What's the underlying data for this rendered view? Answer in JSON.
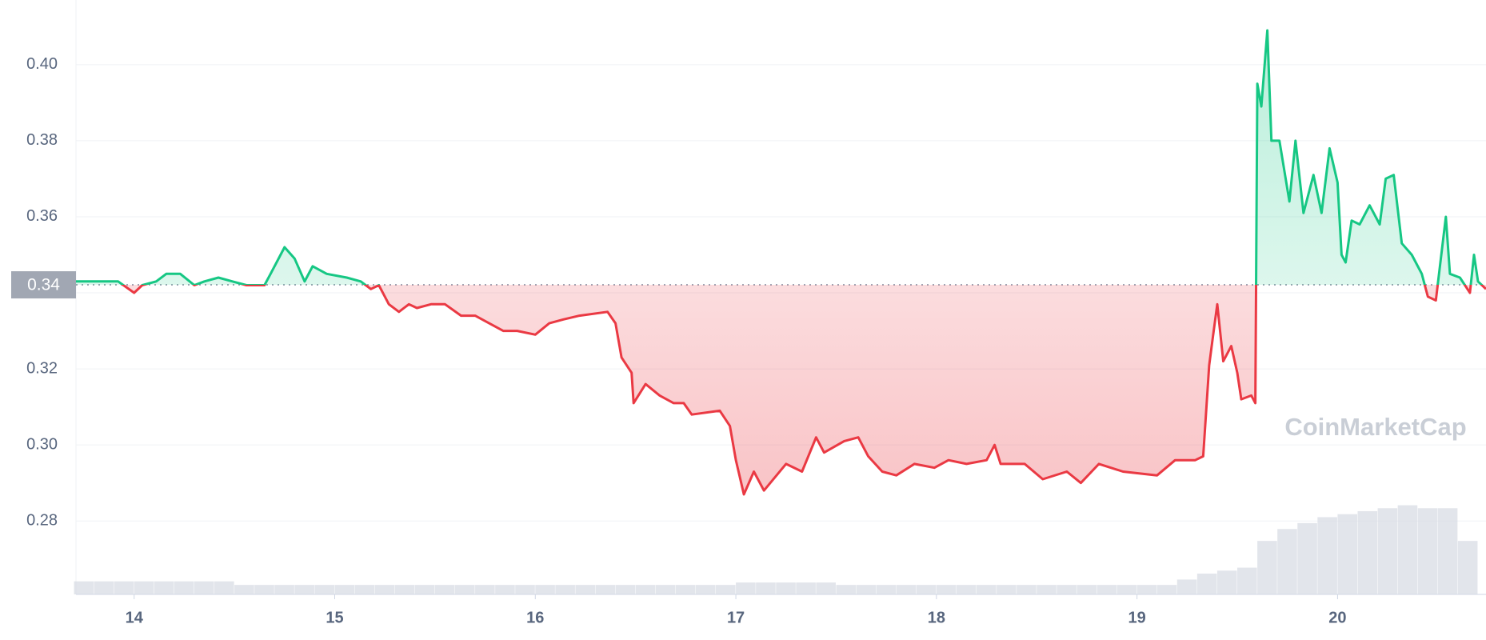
{
  "chart_data": {
    "type": "line",
    "watermark": "CoinMarketCap",
    "x": [
      13.71,
      13.85,
      13.92,
      14.0,
      14.04,
      14.11,
      14.16,
      14.23,
      14.3,
      14.35,
      14.42,
      14.49,
      14.56,
      14.65,
      14.68,
      14.75,
      14.8,
      14.85,
      14.89,
      14.96,
      15.06,
      15.13,
      15.18,
      15.22,
      15.27,
      15.32,
      15.37,
      15.41,
      15.48,
      15.55,
      15.63,
      15.7,
      15.77,
      15.84,
      15.91,
      16.0,
      16.07,
      16.14,
      16.22,
      16.36,
      16.4,
      16.43,
      16.48,
      16.49,
      16.55,
      16.62,
      16.69,
      16.74,
      16.78,
      16.92,
      16.97,
      17.0,
      17.04,
      17.09,
      17.14,
      17.25,
      17.33,
      17.4,
      17.44,
      17.54,
      17.61,
      17.66,
      17.73,
      17.8,
      17.89,
      17.99,
      18.06,
      18.15,
      18.25,
      18.29,
      18.32,
      18.44,
      18.53,
      18.65,
      18.72,
      18.81,
      18.93,
      19.1,
      19.19,
      19.29,
      19.33,
      19.36,
      19.38,
      19.4,
      19.43,
      19.47,
      19.5,
      19.52,
      19.57,
      19.59,
      19.6,
      19.62,
      19.65,
      19.67,
      19.71,
      19.76,
      19.79,
      19.83,
      19.88,
      19.92,
      19.96,
      20.0,
      20.02,
      20.04,
      20.07,
      20.11,
      20.16,
      20.21,
      20.24,
      20.28,
      20.32,
      20.37,
      20.42,
      20.45,
      20.49,
      20.54,
      20.56,
      20.61,
      20.66,
      20.68,
      20.7,
      20.74
    ],
    "series": [
      {
        "values": [
          0.343,
          0.343,
          0.343,
          0.34,
          0.342,
          0.343,
          0.345,
          0.345,
          0.342,
          0.343,
          0.344,
          0.343,
          0.342,
          0.342,
          0.345,
          0.352,
          0.349,
          0.343,
          0.347,
          0.345,
          0.344,
          0.343,
          0.341,
          0.342,
          0.337,
          0.335,
          0.337,
          0.336,
          0.337,
          0.337,
          0.334,
          0.334,
          0.332,
          0.33,
          0.33,
          0.329,
          0.332,
          0.333,
          0.334,
          0.335,
          0.332,
          0.323,
          0.319,
          0.311,
          0.316,
          0.313,
          0.311,
          0.311,
          0.308,
          0.309,
          0.305,
          0.296,
          0.287,
          0.293,
          0.288,
          0.295,
          0.293,
          0.302,
          0.298,
          0.301,
          0.302,
          0.297,
          0.293,
          0.292,
          0.295,
          0.294,
          0.296,
          0.295,
          0.296,
          0.3,
          0.295,
          0.295,
          0.291,
          0.293,
          0.29,
          0.295,
          0.293,
          0.292,
          0.296,
          0.296,
          0.297,
          0.321,
          0.329,
          0.337,
          0.322,
          0.326,
          0.319,
          0.312,
          0.313,
          0.311,
          0.395,
          0.389,
          0.409,
          0.38,
          0.38,
          0.364,
          0.38,
          0.361,
          0.371,
          0.361,
          0.378,
          0.369,
          0.35,
          0.348,
          0.359,
          0.358,
          0.363,
          0.358,
          0.37,
          0.371,
          0.353,
          0.35,
          0.345,
          0.339,
          0.338,
          0.36,
          0.345,
          0.344,
          0.34,
          0.35,
          0.343,
          0.341
        ]
      }
    ],
    "color_above": "#16c784",
    "color_below": "#ea3943",
    "baseline": {
      "value": 0.3421,
      "label": "0.34"
    },
    "xlim": [
      13.71,
      20.74
    ],
    "ylim": [
      0.2607,
      0.417
    ],
    "xticks": [
      14,
      15,
      16,
      17,
      18,
      19,
      20
    ],
    "yticks": [
      0.28,
      {
        "value": 0.3,
        "label": "0.30"
      },
      0.32,
      0.34,
      0.36,
      0.38,
      {
        "value": 0.4,
        "label": "0.40"
      }
    ],
    "grid": true,
    "volume": {
      "color": "#d5dae3",
      "x": [
        13.75,
        13.85,
        13.95,
        14.05,
        14.15,
        14.25,
        14.35,
        14.45,
        14.55,
        14.65,
        14.75,
        14.85,
        14.95,
        15.05,
        15.15,
        15.25,
        15.35,
        15.45,
        15.55,
        15.65,
        15.75,
        15.85,
        15.95,
        16.05,
        16.15,
        16.25,
        16.35,
        16.45,
        16.55,
        16.65,
        16.75,
        16.85,
        16.95,
        17.05,
        17.15,
        17.25,
        17.35,
        17.45,
        17.55,
        17.65,
        17.75,
        17.85,
        17.95,
        18.05,
        18.15,
        18.25,
        18.35,
        18.45,
        18.55,
        18.65,
        18.75,
        18.85,
        18.95,
        19.05,
        19.15,
        19.25,
        19.35,
        19.45,
        19.55,
        19.65,
        19.75,
        19.85,
        19.95,
        20.05,
        20.15,
        20.25,
        20.35,
        20.45,
        20.55,
        20.65
      ],
      "values": [
        2.2,
        2.2,
        2.2,
        2.2,
        2.2,
        2.2,
        2.2,
        2.2,
        1.6,
        1.6,
        1.6,
        1.6,
        1.6,
        1.6,
        1.6,
        1.6,
        1.6,
        1.6,
        1.6,
        1.6,
        1.6,
        1.6,
        1.6,
        1.6,
        1.6,
        1.6,
        1.6,
        1.6,
        1.6,
        1.6,
        1.6,
        1.6,
        1.6,
        2.0,
        2.0,
        2.0,
        2.0,
        2.0,
        1.6,
        1.6,
        1.6,
        1.6,
        1.6,
        1.6,
        1.6,
        1.6,
        1.6,
        1.6,
        1.6,
        1.6,
        1.6,
        1.6,
        1.6,
        1.6,
        1.6,
        2.5,
        3.5,
        4.0,
        4.5,
        9,
        11,
        12,
        13,
        13.5,
        14,
        14.5,
        15,
        14.5,
        14.5,
        9
      ]
    },
    "y2lim": [
      0,
      100
    ]
  }
}
